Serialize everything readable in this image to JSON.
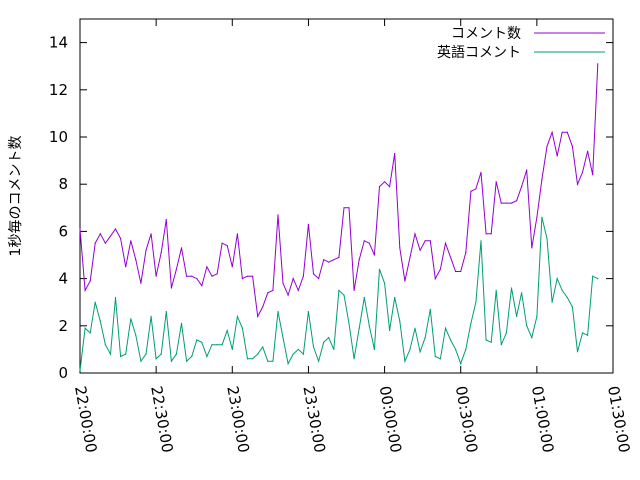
{
  "chart_data": {
    "type": "line",
    "title": "",
    "xlabel": "",
    "ylabel": "1秒毎のコメント数",
    "ylim": [
      0,
      15
    ],
    "yticks": [
      0,
      2,
      4,
      6,
      8,
      10,
      12,
      14
    ],
    "xticks": [
      "22:00:00",
      "22:30:00",
      "23:00:00",
      "23:30:00",
      "00:00:00",
      "00:30:00",
      "01:00:00",
      "01:30:00"
    ],
    "x_range_minutes": [
      0,
      210
    ],
    "x_start_label": "22:00:00",
    "grid": false,
    "legend_position": "top-right",
    "sample_interval_minutes": 2,
    "series": [
      {
        "name": "コメント数",
        "color": "#9400d3",
        "values": [
          6.1,
          3.5,
          3.9,
          5.5,
          5.9,
          5.5,
          5.8,
          6.1,
          5.7,
          4.5,
          5.6,
          4.8,
          3.8,
          5.2,
          5.9,
          4.1,
          5.1,
          6.5,
          3.6,
          4.4,
          5.3,
          4.1,
          4.1,
          4.0,
          3.7,
          4.5,
          4.1,
          4.2,
          5.5,
          5.4,
          4.5,
          5.9,
          4.0,
          4.1,
          4.1,
          2.4,
          2.8,
          3.4,
          3.5,
          6.7,
          3.8,
          3.3,
          4.0,
          3.5,
          4.1,
          6.3,
          4.2,
          4.0,
          4.8,
          4.7,
          4.8,
          4.9,
          7.0,
          7.0,
          3.5,
          4.8,
          5.6,
          5.5,
          5.0,
          7.9,
          8.1,
          7.9,
          9.3,
          5.3,
          3.9,
          4.9,
          5.9,
          5.2,
          5.6,
          5.6,
          4.0,
          4.4,
          5.5,
          4.9,
          4.3,
          4.3,
          5.1,
          7.7,
          7.8,
          8.5,
          5.9,
          5.9,
          8.1,
          7.2,
          7.2,
          7.2,
          7.3,
          7.9,
          8.6,
          5.3,
          6.6,
          8.2,
          9.6,
          10.2,
          9.2,
          10.2,
          10.2,
          9.6,
          8.0,
          8.5,
          9.4,
          8.4,
          13.1
        ]
      },
      {
        "name": "英語コメント",
        "color": "#009e73",
        "values": [
          0.1,
          1.9,
          1.7,
          3.0,
          2.2,
          1.2,
          0.8,
          3.2,
          0.7,
          0.8,
          2.3,
          1.6,
          0.5,
          0.8,
          2.4,
          0.6,
          0.8,
          2.6,
          0.5,
          0.8,
          2.1,
          0.5,
          0.7,
          1.4,
          1.3,
          0.7,
          1.2,
          1.2,
          1.2,
          1.8,
          1.0,
          2.4,
          1.9,
          0.6,
          0.6,
          0.8,
          1.1,
          0.5,
          0.5,
          2.6,
          1.5,
          0.4,
          0.8,
          1.0,
          0.8,
          2.6,
          1.1,
          0.5,
          1.3,
          1.5,
          1.0,
          3.5,
          3.3,
          2.1,
          0.6,
          1.9,
          3.2,
          2.0,
          1.0,
          4.4,
          3.8,
          1.8,
          3.2,
          2.2,
          0.5,
          1.0,
          1.9,
          0.9,
          1.5,
          2.7,
          0.7,
          0.6,
          1.9,
          1.4,
          1.0,
          0.4,
          1.0,
          2.1,
          3.0,
          5.6,
          1.4,
          1.3,
          3.5,
          1.2,
          1.7,
          3.6,
          2.4,
          3.4,
          2.0,
          1.5,
          2.4,
          6.6,
          5.7,
          3.0,
          4.0,
          3.5,
          3.2,
          2.8,
          0.9,
          1.7,
          1.6,
          4.1,
          4.0
        ]
      }
    ]
  }
}
